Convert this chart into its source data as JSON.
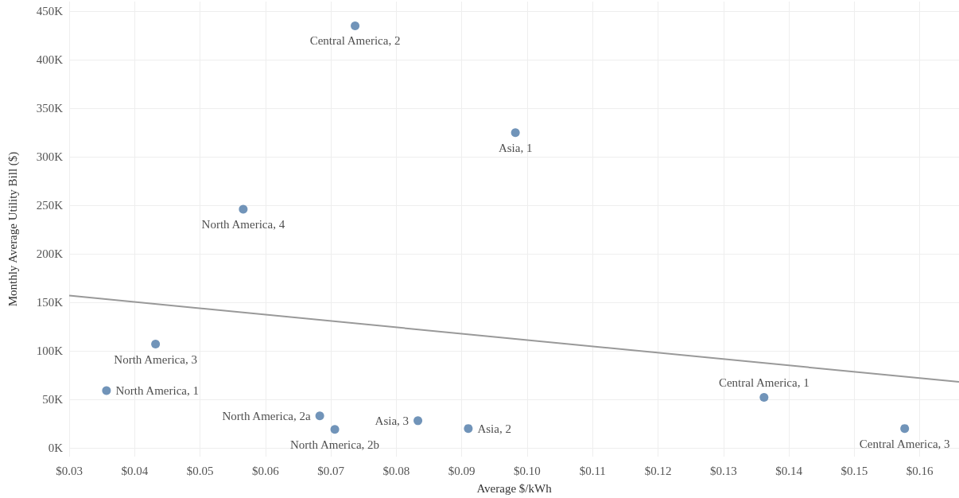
{
  "chart_data": {
    "type": "scatter",
    "xlabel": "Average $/kWh",
    "ylabel": "Monthly Average Utility Bill ($)",
    "series": [
      {
        "color": "#4e79a7",
        "marker": "circle",
        "x": [
          0.0737,
          0.0982,
          0.0566,
          0.0432,
          0.0357,
          0.0683,
          0.0706,
          0.0833,
          0.091,
          0.1362,
          0.1577
        ],
        "values": [
          435000,
          325000,
          246000,
          107000,
          59000,
          33000,
          19000,
          28000,
          20000,
          52000,
          20000
        ]
      },
      {
        "type": "line",
        "color": "#999999",
        "marker": "none",
        "x": [
          0.03,
          0.166
        ],
        "values": [
          157000,
          68000
        ]
      }
    ],
    "annotations": [
      {
        "text": "Central America, 2",
        "x": 0.0737,
        "y": 435000
      },
      {
        "text": "Asia, 1",
        "x": 0.0982,
        "y": 325000
      },
      {
        "text": "North America, 4",
        "x": 0.0566,
        "y": 246000
      },
      {
        "text": "North America, 3",
        "x": 0.0432,
        "y": 107000
      },
      {
        "text": "North America, 1",
        "x": 0.0357,
        "y": 59000
      },
      {
        "text": "North America, 2a",
        "x": 0.0683,
        "y": 33000
      },
      {
        "text": "North America, 2b",
        "x": 0.0706,
        "y": 19000
      },
      {
        "text": "Asia, 3",
        "x": 0.0833,
        "y": 28000
      },
      {
        "text": "Asia, 2",
        "x": 0.091,
        "y": 20000
      },
      {
        "text": "Central America, 1",
        "x": 0.1362,
        "y": 52000
      },
      {
        "text": "Central America, 3",
        "x": 0.1577,
        "y": 20000
      }
    ],
    "xlim": [
      0.03,
      0.166
    ],
    "xticks": [
      {
        "value": 0.03,
        "label": "$0.03"
      },
      {
        "value": 0.04,
        "label": "$0.04"
      },
      {
        "value": 0.05,
        "label": "$0.05"
      },
      {
        "value": 0.06,
        "label": "$0.06"
      },
      {
        "value": 0.07,
        "label": "$0.07"
      },
      {
        "value": 0.08,
        "label": "$0.08"
      },
      {
        "value": 0.09,
        "label": "$0.09"
      },
      {
        "value": 0.1,
        "label": "$0.10"
      },
      {
        "value": 0.11,
        "label": "$0.11"
      },
      {
        "value": 0.12,
        "label": "$0.12"
      },
      {
        "value": 0.13,
        "label": "$0.13"
      },
      {
        "value": 0.14,
        "label": "$0.14"
      },
      {
        "value": 0.15,
        "label": "$0.15"
      },
      {
        "value": 0.16,
        "label": "$0.16"
      }
    ],
    "ylim": [
      -9000,
      460000
    ],
    "yticks": [
      {
        "value": 0,
        "label": "0K"
      },
      {
        "value": 50000,
        "label": "50K"
      },
      {
        "value": 100000,
        "label": "100K"
      },
      {
        "value": 150000,
        "label": "150K"
      },
      {
        "value": 200000,
        "label": "200K"
      },
      {
        "value": 250000,
        "label": "250K"
      },
      {
        "value": 300000,
        "label": "300K"
      },
      {
        "value": 350000,
        "label": "350K"
      },
      {
        "value": 400000,
        "label": "400K"
      },
      {
        "value": 450000,
        "label": "450K"
      }
    ],
    "grid": true
  }
}
